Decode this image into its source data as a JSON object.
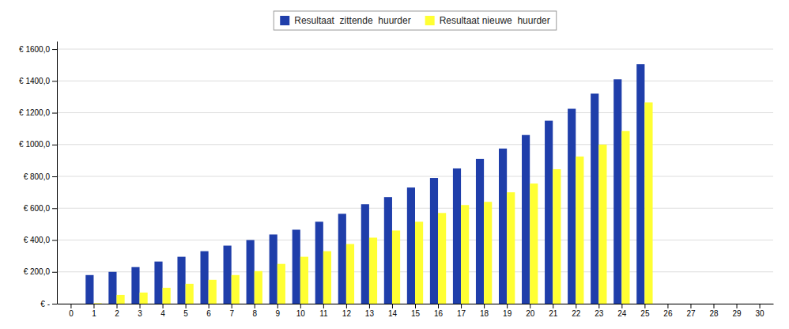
{
  "chart_data": {
    "type": "bar",
    "x": [
      0,
      1,
      2,
      3,
      4,
      5,
      6,
      7,
      8,
      9,
      10,
      11,
      12,
      13,
      14,
      15,
      16,
      17,
      18,
      19,
      20,
      21,
      22,
      23,
      24,
      25,
      26,
      27,
      28,
      29,
      30
    ],
    "series": [
      {
        "name": "Resultaat  zittende  huurder",
        "color": "#1F3EAA",
        "values": [
          0,
          180,
          200,
          230,
          265,
          295,
          330,
          365,
          400,
          435,
          465,
          515,
          565,
          625,
          670,
          730,
          790,
          850,
          910,
          975,
          1060,
          1150,
          1225,
          1320,
          1410,
          1505,
          0,
          0,
          0,
          0,
          0
        ]
      },
      {
        "name": "Resultaat nieuwe  huurder",
        "color": "#FFFF33",
        "values": [
          0,
          3,
          55,
          70,
          100,
          125,
          150,
          180,
          205,
          250,
          295,
          330,
          375,
          415,
          460,
          515,
          570,
          620,
          640,
          700,
          755,
          845,
          925,
          1000,
          1085,
          1265,
          0,
          0,
          0,
          0,
          0
        ]
      }
    ],
    "xlim": [
      -0.6,
      30.6
    ],
    "xticks": [
      0,
      1,
      2,
      3,
      4,
      5,
      6,
      7,
      8,
      9,
      10,
      11,
      12,
      13,
      14,
      15,
      16,
      17,
      18,
      19,
      20,
      21,
      22,
      23,
      24,
      25,
      26,
      27,
      28,
      29,
      30
    ],
    "ylim": [
      0,
      1650
    ],
    "yticks": [
      {
        "value": 0,
        "label": "€ -"
      },
      {
        "value": 200,
        "label": "€ 200,0"
      },
      {
        "value": 400,
        "label": "€ 400,0"
      },
      {
        "value": 600,
        "label": "€ 600,0"
      },
      {
        "value": 800,
        "label": "€ 800,0"
      },
      {
        "value": 1000,
        "label": "€ 1000,0"
      },
      {
        "value": 1200,
        "label": "€ 1200,0"
      },
      {
        "value": 1400,
        "label": "€ 1400,0"
      },
      {
        "value": 1600,
        "label": "€ 1600,0"
      }
    ],
    "grid": true,
    "legend": "top"
  }
}
